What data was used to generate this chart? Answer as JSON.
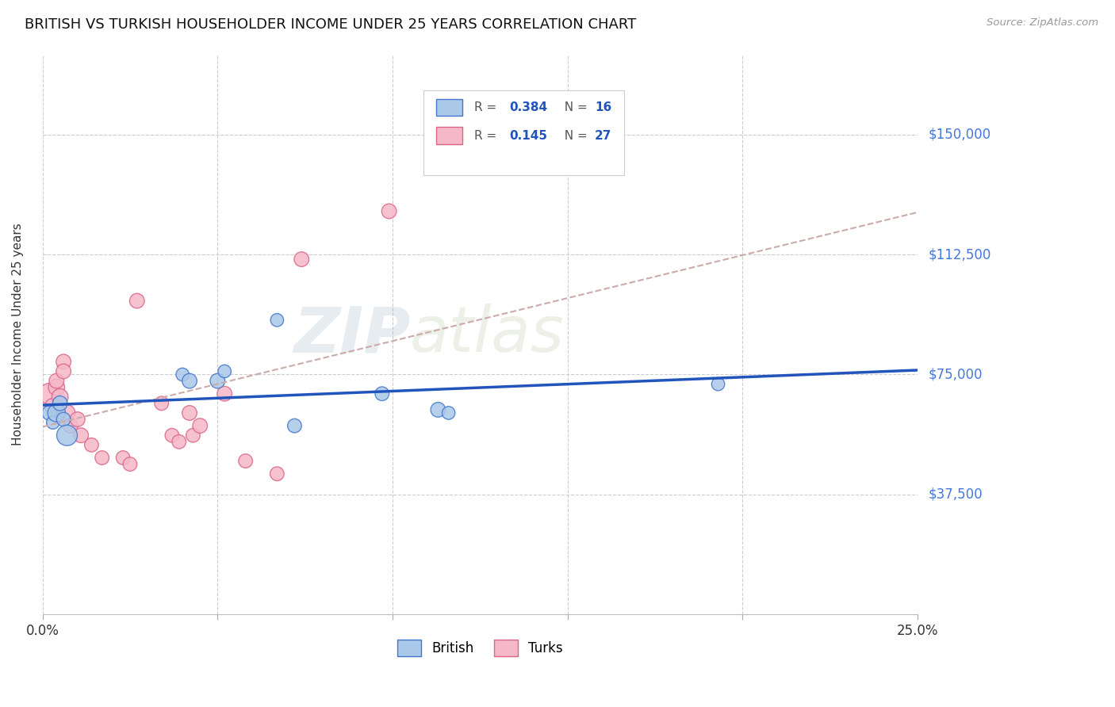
{
  "title": "BRITISH VS TURKISH HOUSEHOLDER INCOME UNDER 25 YEARS CORRELATION CHART",
  "source": "Source: ZipAtlas.com",
  "ylabel": "Householder Income Under 25 years",
  "xlim": [
    0.0,
    0.25
  ],
  "ylim": [
    0,
    175000
  ],
  "yticks": [
    37500,
    75000,
    112500,
    150000
  ],
  "ytick_labels": [
    "$37,500",
    "$75,000",
    "$112,500",
    "$150,000"
  ],
  "xticks": [
    0.0,
    0.05,
    0.1,
    0.15,
    0.2,
    0.25
  ],
  "xtick_labels": [
    "0.0%",
    "",
    "",
    "",
    "",
    "25.0%"
  ],
  "background_color": "#ffffff",
  "grid_color": "#cccccc",
  "watermark_zip": "ZIP",
  "watermark_atlas": "atlas",
  "british_color": "#aac8e8",
  "turks_color": "#f5b8c8",
  "british_edge_color": "#4477cc",
  "turks_edge_color": "#dd6688",
  "british_line_color": "#2255bb",
  "turks_line_color": "#ddaaaa",
  "legend_R_color": "#2255bb",
  "legend_N_color": "#2255bb",
  "legend_R_british": "0.384",
  "legend_N_british": "16",
  "legend_R_turks": "0.145",
  "legend_N_turks": "27",
  "british_x": [
    0.002,
    0.003,
    0.004,
    0.005,
    0.006,
    0.007,
    0.04,
    0.042,
    0.05,
    0.052,
    0.067,
    0.072,
    0.097,
    0.113,
    0.116,
    0.193
  ],
  "british_y": [
    63000,
    60000,
    63000,
    66000,
    61000,
    56000,
    75000,
    73000,
    73000,
    76000,
    92000,
    59000,
    69000,
    64000,
    63000,
    72000
  ],
  "turks_x": [
    0.002,
    0.003,
    0.004,
    0.004,
    0.005,
    0.006,
    0.006,
    0.007,
    0.008,
    0.01,
    0.011,
    0.014,
    0.017,
    0.023,
    0.025,
    0.027,
    0.034,
    0.037,
    0.039,
    0.042,
    0.043,
    0.045,
    0.052,
    0.058,
    0.067,
    0.074,
    0.099
  ],
  "turks_y": [
    69000,
    65000,
    71000,
    73000,
    68000,
    79000,
    76000,
    63000,
    59000,
    61000,
    56000,
    53000,
    49000,
    49000,
    47000,
    98000,
    66000,
    56000,
    54000,
    63000,
    56000,
    59000,
    69000,
    48000,
    44000,
    111000,
    126000
  ],
  "british_sizes": [
    180,
    140,
    260,
    180,
    160,
    350,
    140,
    180,
    180,
    140,
    140,
    160,
    160,
    180,
    140,
    140
  ],
  "turks_sizes": [
    360,
    220,
    220,
    180,
    220,
    180,
    180,
    220,
    180,
    180,
    180,
    160,
    160,
    160,
    160,
    180,
    160,
    160,
    160,
    180,
    160,
    180,
    180,
    160,
    160,
    180,
    180
  ]
}
